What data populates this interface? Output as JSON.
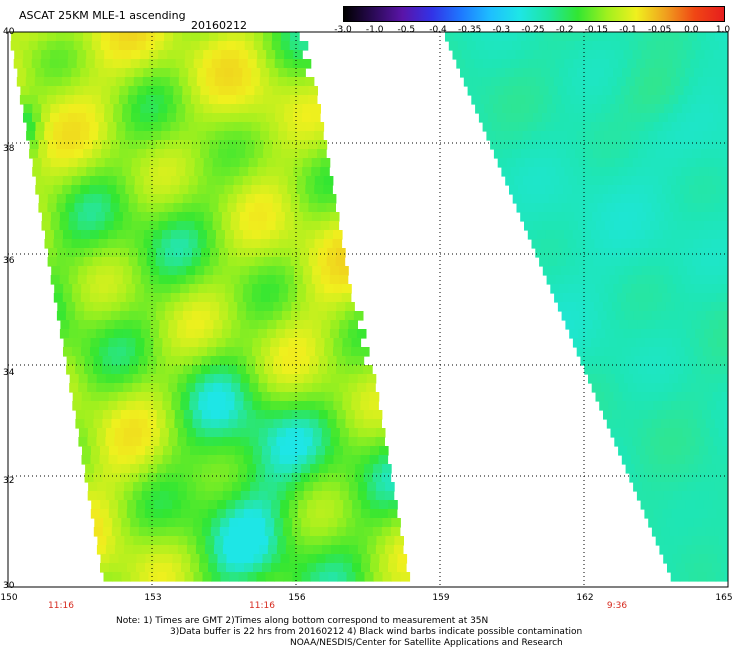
{
  "header": {
    "title": "ASCAT 25KM MLE-1 ascending",
    "date": "20160212"
  },
  "colorbar": {
    "tick_labels": [
      "-3.0",
      "-1.0",
      "-0.5",
      "-0.4",
      "-0.35",
      "-0.3",
      "-0.25",
      "-0.2",
      "-0.15",
      "-0.1",
      "-0.05",
      "0.0",
      "1.0"
    ],
    "colors": [
      "#000000",
      "#2a0a55",
      "#5a14a8",
      "#3232e6",
      "#1e78ff",
      "#1ebeff",
      "#1ee6e6",
      "#1ee6a0",
      "#32e632",
      "#a0f01e",
      "#f0f01e",
      "#f0a01e",
      "#f04614",
      "#e61e1e"
    ]
  },
  "map": {
    "lat_labels": [
      "40",
      "38",
      "36",
      "34",
      "32",
      "30"
    ],
    "lon_labels": [
      "150",
      "153",
      "156",
      "159",
      "162",
      "165"
    ],
    "lat_range": [
      30,
      40
    ],
    "lon_range": [
      150,
      165
    ],
    "grid": "dotted",
    "pass_times": [
      {
        "label": "11:16",
        "lon": 151
      },
      {
        "label": "11:16",
        "lon": 155.3
      },
      {
        "label": "9:36",
        "lon": 162.6
      }
    ],
    "swaths": [
      {
        "name": "left-swath",
        "dominant_colors": [
          "#32e632",
          "#a0f01e",
          "#f0f01e",
          "#1ee6e6"
        ],
        "pass": "11:16"
      },
      {
        "name": "right-swath",
        "dominant_colors": [
          "#1ee6c0",
          "#32e680"
        ],
        "pass": "9:36"
      }
    ]
  },
  "notes": {
    "line1": "Note: 1) Times are GMT 2)Times along bottom correspond to measurement at 35N",
    "line2": "3)Data buffer is 22 hrs from 20160212 4) Black wind barbs indicate possible contamination",
    "line3": "NOAA/NESDIS/Center for Satellite Applications and Research"
  }
}
